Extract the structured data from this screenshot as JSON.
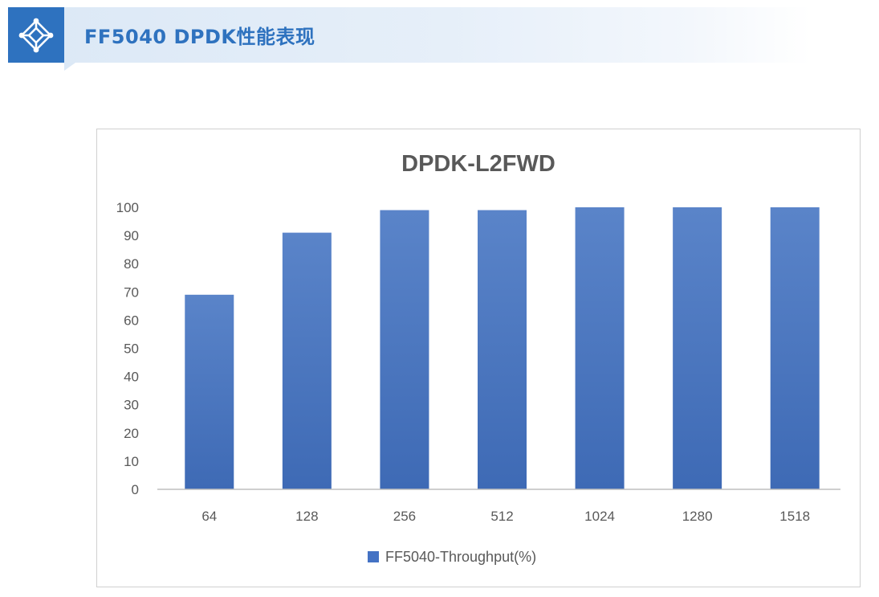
{
  "header": {
    "title": "FF5040 DPDK性能表现",
    "icon": "network-diamond-icon",
    "accent_color": "#2e72bf"
  },
  "chart_data": {
    "type": "bar",
    "title": "DPDK-L2FWD",
    "categories": [
      "64",
      "128",
      "256",
      "512",
      "1024",
      "1280",
      "1518"
    ],
    "series": [
      {
        "name": "FF5040-Throughput(%)",
        "values": [
          69,
          91,
          99,
          99,
          100,
          100,
          100
        ],
        "color": "#4472c4"
      }
    ],
    "yticks": [
      "0",
      "10",
      "20",
      "30",
      "40",
      "50",
      "60",
      "70",
      "80",
      "90",
      "100"
    ],
    "ylim": [
      0,
      100
    ],
    "xlabel": "",
    "ylabel": "",
    "grid": false,
    "legend": "bottom"
  }
}
